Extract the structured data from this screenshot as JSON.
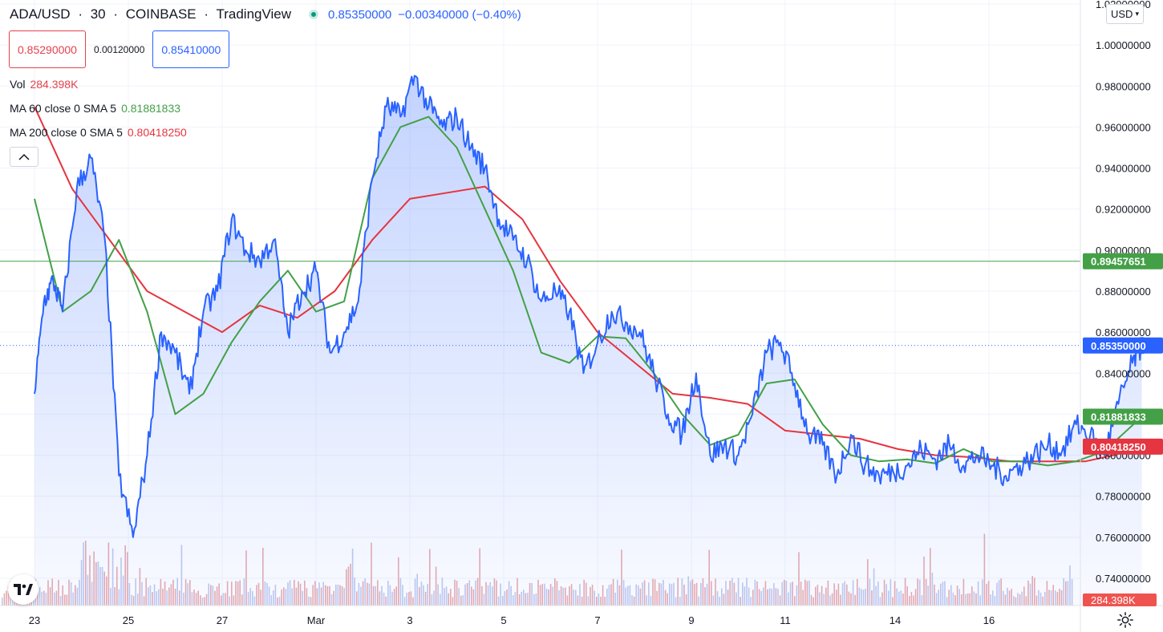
{
  "header": {
    "symbol": "ADA/USD",
    "interval": "30",
    "exchange": "COINBASE",
    "provider": "TradingView",
    "separator": "·",
    "last": "0.85350000",
    "change": "−0.00340000 (−0.40%)",
    "status_color": "#089981"
  },
  "order": {
    "sell": "0.85290000",
    "spread": "0.00120000",
    "buy": "0.85410000"
  },
  "legend": {
    "vol_label": "Vol",
    "vol_value": "284.398K",
    "ma60_label": "MA 60 close 0 SMA 5",
    "ma60_value": "0.81881833",
    "ma200_label": "MA 200 close 0 SMA 5",
    "ma200_value": "0.80418250"
  },
  "toolbar": {
    "currency": "USD",
    "collapse_icon": "chevron-up-icon",
    "settings_icon": "gear-icon",
    "logo_icon": "tradingview-logo-icon"
  },
  "colors": {
    "price_line": "#2962ff",
    "ma60": "#43a047",
    "ma200": "#e53540",
    "up_volume": "#e6a3a8",
    "horizontal_line": "#43a047"
  },
  "chart_data": {
    "type": "line",
    "x_ticks": [
      "23",
      "25",
      "27",
      "Mar",
      "3",
      "5",
      "7",
      "9",
      "11",
      "14",
      "16"
    ],
    "y_ticks": [
      "0.74000000",
      "0.76000000",
      "0.78000000",
      "0.80000000",
      "0.82000000",
      "0.84000000",
      "0.86000000",
      "0.88000000",
      "0.90000000",
      "0.92000000",
      "0.94000000",
      "0.96000000",
      "0.98000000",
      "1.00000000",
      "1.02000000"
    ],
    "ylim": [
      0.728,
      1.0215
    ],
    "x_days": [
      0,
      24
    ],
    "horizontal_line": {
      "value": 0.89457651,
      "label": "0.89457651"
    },
    "current_price": {
      "value": 0.8535,
      "label": "0.85350000"
    },
    "ma60_last": {
      "value": 0.81881833,
      "label": "0.81881833"
    },
    "ma200_last": {
      "value": 0.8041825,
      "label": "0.80418250"
    },
    "volume_last_label": "284.398K",
    "series": [
      {
        "key": "price",
        "x": [
          0,
          0.2,
          0.4,
          0.6,
          0.9,
          1.2,
          1.5,
          1.8,
          2.1,
          2.4,
          2.7,
          3.0,
          3.3,
          3.6,
          3.9,
          4.2,
          4.5,
          4.8,
          5.1,
          5.4,
          5.7,
          6.0,
          6.3,
          6.6,
          6.9,
          7.2,
          7.5,
          7.8,
          8.1,
          8.4,
          8.7,
          9.0,
          9.3,
          9.6,
          9.9,
          10.2,
          10.5,
          10.8,
          11.1,
          11.4,
          11.7,
          12.0,
          12.3,
          12.6,
          12.9,
          13.2,
          13.5,
          13.8,
          14.1,
          14.4,
          14.7,
          15.0,
          15.3,
          15.6,
          15.9,
          16.2,
          16.5,
          16.8,
          17.1,
          17.4,
          17.7,
          18.0,
          18.3,
          18.6,
          18.9,
          19.2,
          19.5,
          19.8,
          20.1,
          20.4,
          20.7,
          21.0,
          21.3,
          21.6,
          21.9,
          22.2,
          22.5,
          22.8,
          23.1,
          23.4,
          23.6
        ],
        "values": [
          0.83,
          0.875,
          0.885,
          0.87,
          0.93,
          0.945,
          0.905,
          0.79,
          0.76,
          0.8,
          0.86,
          0.85,
          0.83,
          0.87,
          0.88,
          0.915,
          0.9,
          0.895,
          0.905,
          0.86,
          0.88,
          0.89,
          0.85,
          0.86,
          0.875,
          0.935,
          0.97,
          0.965,
          0.985,
          0.97,
          0.96,
          0.965,
          0.95,
          0.94,
          0.915,
          0.905,
          0.895,
          0.875,
          0.88,
          0.87,
          0.84,
          0.855,
          0.87,
          0.865,
          0.86,
          0.84,
          0.82,
          0.81,
          0.84,
          0.8,
          0.805,
          0.8,
          0.82,
          0.85,
          0.855,
          0.835,
          0.81,
          0.805,
          0.79,
          0.81,
          0.795,
          0.79,
          0.792,
          0.795,
          0.803,
          0.798,
          0.805,
          0.795,
          0.8,
          0.795,
          0.79,
          0.795,
          0.8,
          0.805,
          0.802,
          0.815,
          0.81,
          0.8,
          0.825,
          0.845,
          0.8535
        ]
      },
      {
        "key": "ma60",
        "x": [
          0,
          0.6,
          1.2,
          1.8,
          2.4,
          3.0,
          3.6,
          4.2,
          4.8,
          5.4,
          6.0,
          6.6,
          7.2,
          7.8,
          8.4,
          9.0,
          9.6,
          10.2,
          10.8,
          11.4,
          12.0,
          12.6,
          13.2,
          13.8,
          14.4,
          15.0,
          15.6,
          16.2,
          16.8,
          17.4,
          18.0,
          18.6,
          19.2,
          19.8,
          20.4,
          21.0,
          21.6,
          22.2,
          22.8,
          23.6
        ],
        "values": [
          0.925,
          0.87,
          0.88,
          0.905,
          0.87,
          0.82,
          0.83,
          0.855,
          0.875,
          0.89,
          0.87,
          0.875,
          0.935,
          0.96,
          0.965,
          0.95,
          0.92,
          0.89,
          0.85,
          0.845,
          0.858,
          0.857,
          0.84,
          0.82,
          0.805,
          0.81,
          0.835,
          0.837,
          0.815,
          0.8,
          0.797,
          0.798,
          0.796,
          0.803,
          0.797,
          0.797,
          0.795,
          0.797,
          0.802,
          0.8188
        ]
      },
      {
        "key": "ma200",
        "x": [
          0,
          0.8,
          1.6,
          2.4,
          3.2,
          4.0,
          4.8,
          5.6,
          6.4,
          7.2,
          8.0,
          8.8,
          9.6,
          10.4,
          11.2,
          12.0,
          12.8,
          13.6,
          14.4,
          15.2,
          16.0,
          16.8,
          17.6,
          18.4,
          19.2,
          20.0,
          20.8,
          21.6,
          22.4,
          23.0,
          23.6
        ],
        "values": [
          0.97,
          0.93,
          0.905,
          0.88,
          0.87,
          0.86,
          0.873,
          0.867,
          0.88,
          0.905,
          0.925,
          0.928,
          0.931,
          0.915,
          0.885,
          0.86,
          0.845,
          0.83,
          0.828,
          0.825,
          0.812,
          0.81,
          0.808,
          0.803,
          0.8,
          0.799,
          0.797,
          0.797,
          0.797,
          0.8,
          0.8042
        ]
      }
    ]
  }
}
